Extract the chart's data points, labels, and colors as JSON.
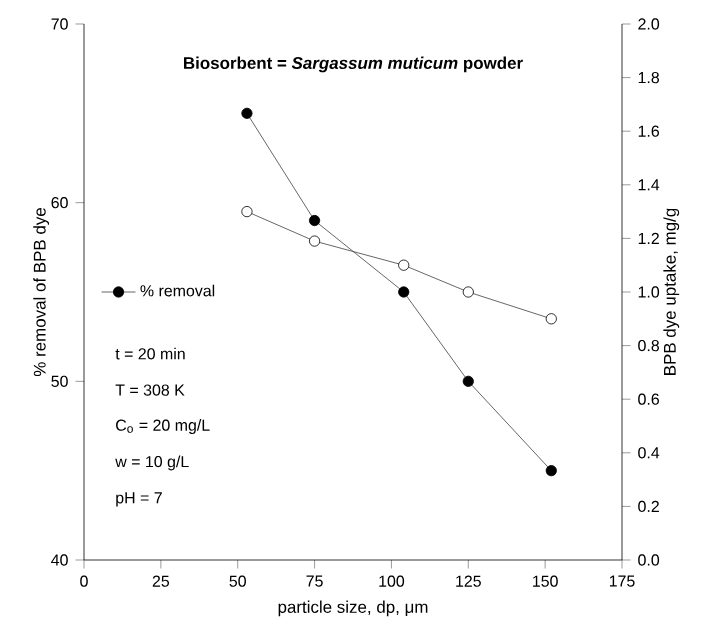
{
  "chart_data": {
    "type": "line",
    "title": "Biosorbent = *Sargassum muticum* powder",
    "xlabel": "particle size, dp, μm",
    "ylabel": "% removal of BPB dye",
    "y2label": "BPB dye uptake, mg/g",
    "x": [
      53,
      75,
      104,
      125,
      152
    ],
    "series": [
      {
        "name": "% removal",
        "color": "#000000",
        "values": [
          65,
          59,
          55,
          50,
          45
        ]
      },
      {
        "color": "#ffffff",
        "axis": "y2",
        "values": [
          1.3,
          1.19,
          1.1,
          1.0,
          0.9
        ]
      }
    ],
    "xlim": [
      0,
      175
    ],
    "xticks": [
      0,
      25,
      50,
      75,
      100,
      125,
      150,
      175
    ],
    "ylim": [
      40,
      70
    ],
    "yticks": [
      40,
      50,
      60,
      70
    ],
    "y2lim": [
      0,
      2
    ],
    "y2ticks": [
      {
        "value": 0,
        "label": "0.0"
      },
      0.2,
      0.4,
      0.6,
      0.8,
      {
        "value": 1,
        "label": "1.0"
      },
      1.2,
      1.4,
      1.6,
      1.8,
      {
        "value": 2,
        "label": "2.0"
      }
    ],
    "annotations": [
      "t = 20 min",
      "T = 308 K",
      "C$_{o}$ = 20 mg/L",
      "w = 10 g/L",
      "pH = 7"
    ],
    "legend": "left",
    "marker": "circle",
    "line_style": "solid",
    "grid": false
  }
}
